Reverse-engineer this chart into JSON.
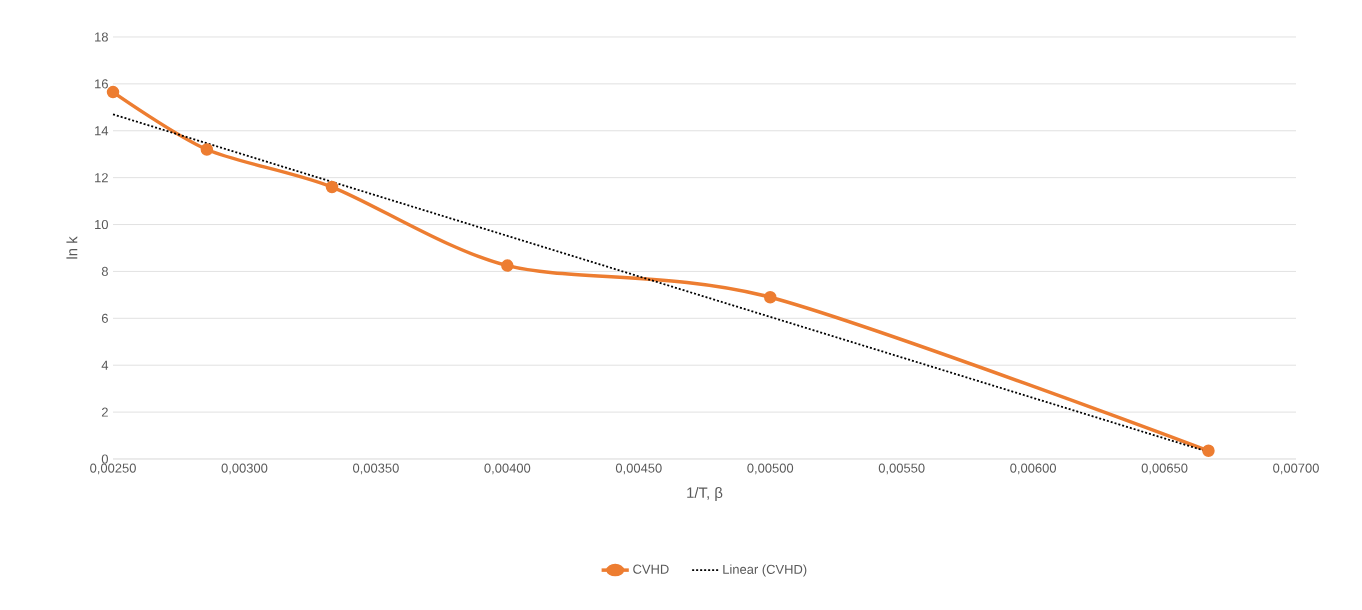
{
  "chart_data": {
    "type": "line",
    "xlabel": "1/T, β",
    "ylabel": "ln k",
    "series": [
      {
        "name": "CVHD",
        "color": "#ed7d31",
        "x": [
          0.0025,
          0.002857,
          0.003333,
          0.004,
          0.005,
          0.006667
        ],
        "values": [
          15.65,
          13.2,
          11.6,
          8.25,
          6.9,
          0.35
        ],
        "marker": "circle",
        "line_style": "solid"
      },
      {
        "name": "Linear (CVHD)",
        "color": "#000000",
        "x": [
          0.0025,
          0.006667
        ],
        "values": [
          14.7,
          0.3
        ],
        "marker": "none",
        "line_style": "dotted"
      }
    ],
    "xlim": [
      0.0025,
      0.007
    ],
    "xticks": [
      {
        "value": 0.0025,
        "label": "0,00250"
      },
      {
        "value": 0.003,
        "label": "0,00300"
      },
      {
        "value": 0.0035,
        "label": "0,00350"
      },
      {
        "value": 0.004,
        "label": "0,00400"
      },
      {
        "value": 0.0045,
        "label": "0,00450"
      },
      {
        "value": 0.005,
        "label": "0,00500"
      },
      {
        "value": 0.0055,
        "label": "0,00550"
      },
      {
        "value": 0.006,
        "label": "0,00600"
      },
      {
        "value": 0.0065,
        "label": "0,00650"
      },
      {
        "value": 0.007,
        "label": "0,00700"
      }
    ],
    "ylim": [
      0,
      18
    ],
    "yticks": [
      0,
      2,
      4,
      6,
      8,
      10,
      12,
      14,
      16,
      18
    ],
    "grid": "y",
    "legend": "bottom"
  }
}
